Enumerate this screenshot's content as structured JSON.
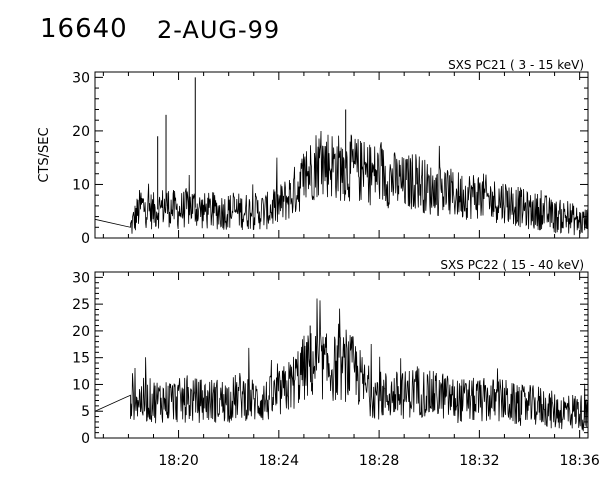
{
  "header": {
    "id": "16640",
    "date": "2-AUG-99"
  },
  "chart_data": [
    {
      "type": "line",
      "title": "SXS PC21  (  3 - 15 keV)",
      "xlabel": "",
      "ylabel": "CTS/SEC",
      "xlim": [
        "18:16:40",
        "18:36:20"
      ],
      "ylim": [
        0,
        31
      ],
      "xticks": [
        "18:20",
        "18:24",
        "18:28",
        "18:32",
        "18:36"
      ],
      "yticks": [
        0,
        10,
        20,
        30
      ],
      "grid": false,
      "series": [
        {
          "x": [
            "18:16:40",
            "18:18:05",
            "18:18:30",
            "18:19:00",
            "18:19:30",
            "18:20:00",
            "18:20:30",
            "18:21:00",
            "18:21:30",
            "18:22:00",
            "18:22:30",
            "18:23:00",
            "18:23:30",
            "18:24:00",
            "18:24:30",
            "18:25:00",
            "18:25:30",
            "18:26:00",
            "18:26:30",
            "18:27:00",
            "18:27:30",
            "18:28:00",
            "18:28:30",
            "18:29:00",
            "18:29:30",
            "18:30:00",
            "18:30:30",
            "18:31:00",
            "18:31:30",
            "18:32:00",
            "18:32:30",
            "18:33:00",
            "18:33:30",
            "18:34:00",
            "18:34:30",
            "18:35:00",
            "18:35:30",
            "18:36:00",
            "18:36:20"
          ],
          "y": [
            3.5,
            2,
            6,
            5,
            6,
            5,
            6,
            5,
            5,
            5,
            5,
            5,
            5,
            6,
            8,
            11,
            14,
            14,
            13,
            13,
            12,
            12,
            11,
            10,
            11,
            9,
            9,
            8,
            8,
            8,
            7,
            7,
            6,
            5,
            5,
            4,
            4,
            3,
            3
          ]
        }
      ],
      "spikes": [
        {
          "x": "18:19:30",
          "y": 23
        },
        {
          "x": "18:19:10",
          "y": 19
        },
        {
          "x": "18:20:40",
          "y": 30
        },
        {
          "x": "18:26:40",
          "y": 24
        }
      ]
    },
    {
      "type": "line",
      "title": "SXS PC22  ( 15 - 40 keV)",
      "xlabel": "",
      "ylabel": "",
      "xlim": [
        "18:16:40",
        "18:36:20"
      ],
      "ylim": [
        0,
        31
      ],
      "xticks": [
        "18:20",
        "18:24",
        "18:28",
        "18:32",
        "18:36"
      ],
      "yticks": [
        0,
        5,
        10,
        15,
        20,
        25,
        30
      ],
      "grid": false,
      "series": [
        {
          "x": [
            "18:16:40",
            "18:18:05",
            "18:18:30",
            "18:19:00",
            "18:19:30",
            "18:20:00",
            "18:20:30",
            "18:21:00",
            "18:21:30",
            "18:22:00",
            "18:22:30",
            "18:23:00",
            "18:23:30",
            "18:24:00",
            "18:24:30",
            "18:25:00",
            "18:25:30",
            "18:26:00",
            "18:26:30",
            "18:27:00",
            "18:27:30",
            "18:28:00",
            "18:28:30",
            "18:29:00",
            "18:29:30",
            "18:30:00",
            "18:30:30",
            "18:31:00",
            "18:31:30",
            "18:32:00",
            "18:32:30",
            "18:33:00",
            "18:33:30",
            "18:34:00",
            "18:34:30",
            "18:35:00",
            "18:35:30",
            "18:36:00",
            "18:36:20"
          ],
          "y": [
            5,
            8,
            7,
            7,
            7,
            7,
            7,
            7,
            7,
            7,
            8,
            7,
            7,
            8,
            10,
            13,
            14,
            13,
            13,
            13,
            9,
            8,
            8,
            8,
            9,
            8,
            8,
            7,
            7,
            7,
            7,
            7,
            6,
            6,
            6,
            5,
            5,
            5,
            4
          ]
        }
      ],
      "spikes": [
        {
          "x": "18:25:15",
          "y": 21
        }
      ]
    }
  ]
}
